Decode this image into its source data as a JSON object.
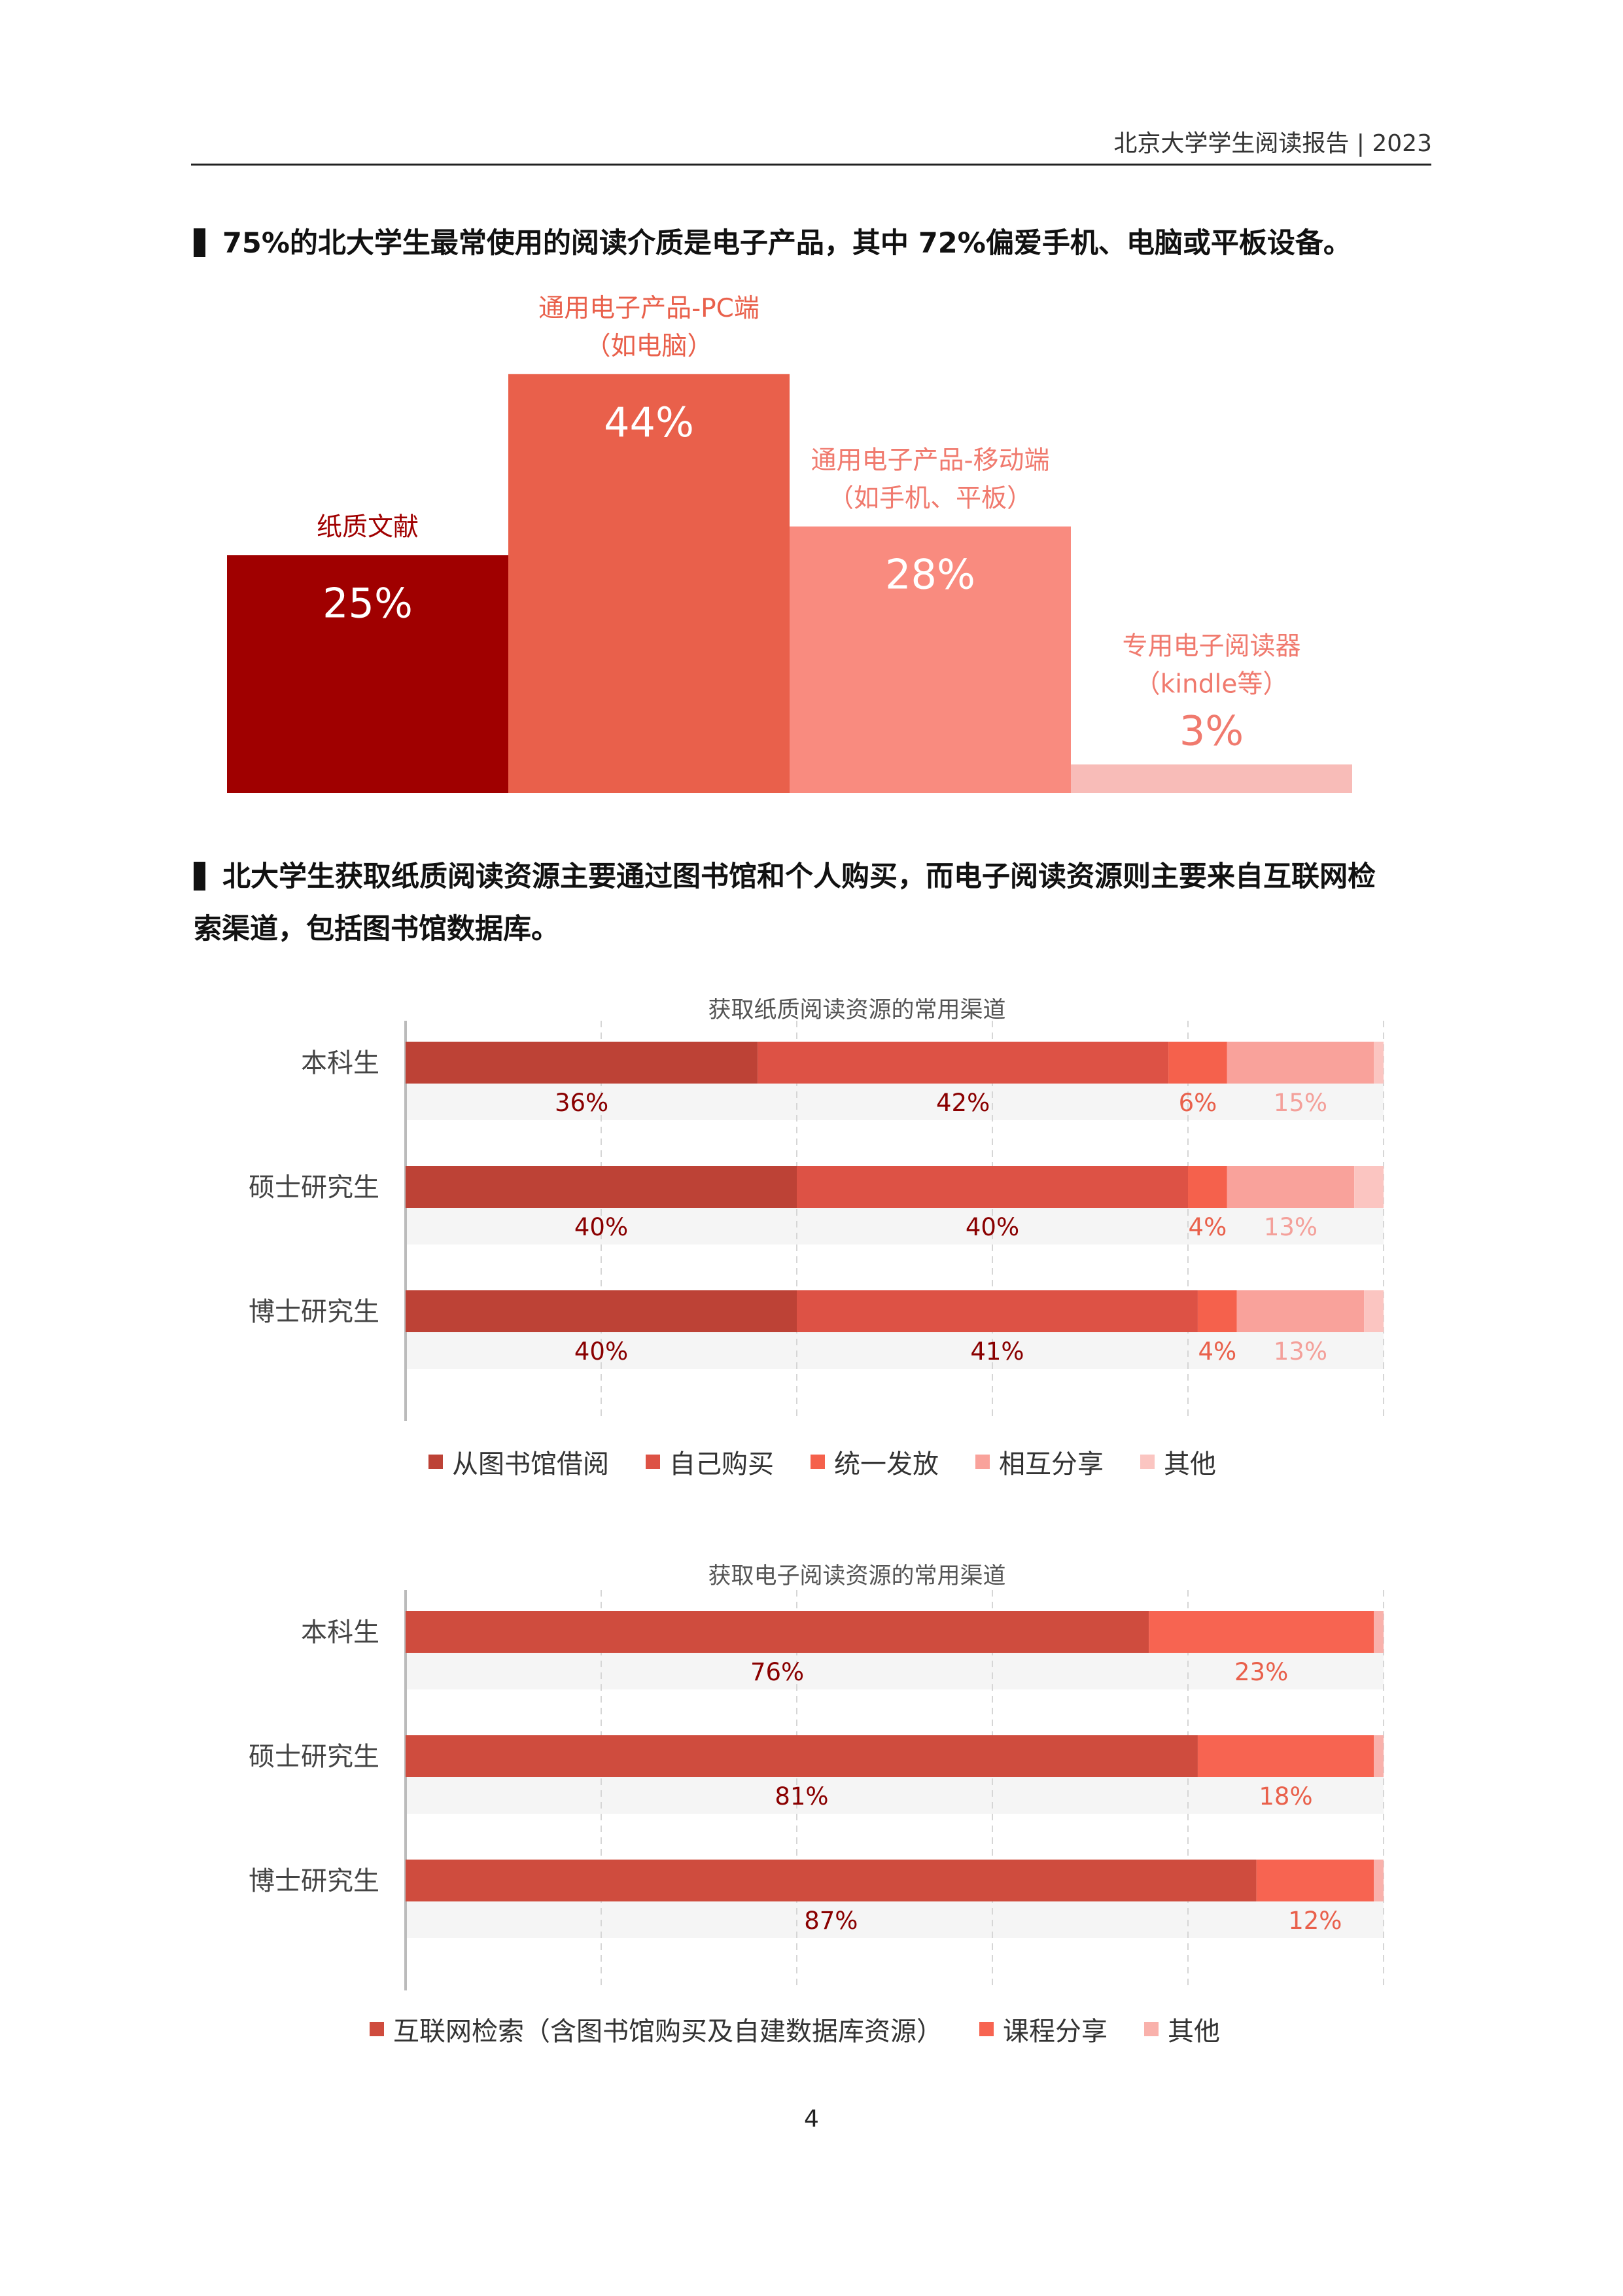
{
  "header": {
    "title": "北京大学学生阅读报告 | 2023"
  },
  "section1": {
    "heading": "75%的北大学生最常使用的阅读介质是电子产品，其中 72%偏爱手机、电脑或平板设备。"
  },
  "section2": {
    "heading_line1": "北大学生获取纸质阅读资源主要通过图书馆和个人购买，而电子阅读资源则主要来自互联网检",
    "heading_line2": "索渠道，包括图书馆数据库。"
  },
  "page_number": "4",
  "chart_data": [
    {
      "type": "bar",
      "categories": [
        "纸质文献",
        "通用电子产品-PC端\n（如电脑）",
        "通用电子产品-移动端\n（如手机、平板）",
        "专用电子阅读器\n（kindle等）"
      ],
      "values": [
        25,
        44,
        28,
        3
      ],
      "value_labels": [
        "25%",
        "44%",
        "28%",
        "3%"
      ],
      "colors": [
        "#a00000",
        "#e9604b",
        "#f98b7f",
        "#f8bcb8"
      ],
      "label_colors": [
        "#a00000",
        "#e9604b",
        "#f07a6e",
        "#f07a6e"
      ]
    },
    {
      "type": "bar",
      "orientation": "horizontal",
      "stacked": true,
      "title": "获取纸质阅读资源的常用渠道",
      "categories": [
        "本科生",
        "硕士研究生",
        "博士研究生"
      ],
      "series": [
        {
          "name": "从图书馆借阅",
          "values": [
            36,
            40,
            40
          ],
          "labels": [
            "36%",
            "40%",
            "40%"
          ],
          "color": "#bd4236",
          "label_color": "#8a0000"
        },
        {
          "name": "自己购买",
          "values": [
            42,
            40,
            41
          ],
          "labels": [
            "42%",
            "40%",
            "41%"
          ],
          "color": "#dd5245",
          "label_color": "#8a0000"
        },
        {
          "name": "统一发放",
          "values": [
            6,
            4,
            4
          ],
          "labels": [
            "6%",
            "4%",
            "4%"
          ],
          "color": "#f5614c",
          "label_color": "#e9604b"
        },
        {
          "name": "相互分享",
          "values": [
            15,
            13,
            13
          ],
          "labels": [
            "15%",
            "13%",
            "13%"
          ],
          "color": "#f9a29b",
          "label_color": "#f4a09a"
        },
        {
          "name": "其他",
          "values": [
            1,
            3,
            2
          ],
          "labels": [
            "",
            "",
            ""
          ],
          "color": "#fbc5c1",
          "label_color": "#f4a09a"
        }
      ],
      "xlim": [
        0,
        100
      ]
    },
    {
      "type": "bar",
      "orientation": "horizontal",
      "stacked": true,
      "title": "获取电子阅读资源的常用渠道",
      "categories": [
        "本科生",
        "硕士研究生",
        "博士研究生"
      ],
      "series": [
        {
          "name": "互联网检索（含图书馆购买及自建数据库资源）",
          "values": [
            76,
            81,
            87
          ],
          "labels": [
            "76%",
            "81%",
            "87%"
          ],
          "color": "#cf4c3e",
          "label_color": "#8a0000"
        },
        {
          "name": "课程分享",
          "values": [
            23,
            18,
            12
          ],
          "labels": [
            "23%",
            "18%",
            "12%"
          ],
          "color": "#f76451",
          "label_color": "#e9604b"
        },
        {
          "name": "其他",
          "values": [
            1,
            1,
            1
          ],
          "labels": [
            "",
            "",
            ""
          ],
          "color": "#f9b1ab",
          "label_color": "#f4a09a"
        }
      ],
      "xlim": [
        0,
        100
      ]
    }
  ]
}
